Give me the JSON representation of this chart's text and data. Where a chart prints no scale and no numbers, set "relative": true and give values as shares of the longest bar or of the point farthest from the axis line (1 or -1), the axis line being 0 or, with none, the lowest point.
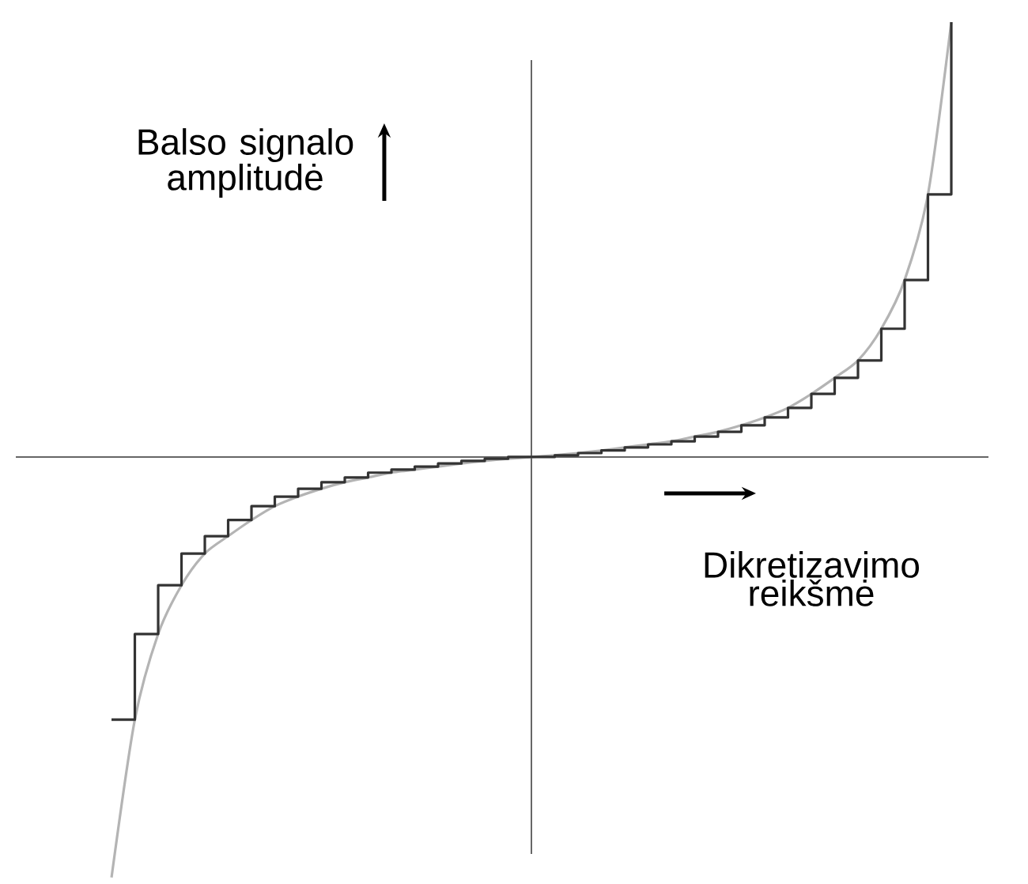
{
  "chart_data": {
    "type": "line",
    "xlabel": "Dikretizavimo reikšmė",
    "ylabel": "Balso signalo amplitudė",
    "relative": true,
    "categories": [
      null,
      null,
      null,
      null,
      null,
      null,
      null,
      null,
      null,
      null,
      null,
      null,
      null,
      null,
      null,
      null,
      null,
      null,
      null,
      null,
      null,
      null,
      null,
      null,
      null,
      null,
      null,
      null,
      null,
      null,
      null,
      null,
      null,
      null,
      null,
      null,
      null
    ],
    "series": [
      {
        "type": "line",
        "color": "#b4b4b4",
        "values": [
          -0.967,
          -0.604,
          -0.407,
          -0.295,
          -0.222,
          -0.182,
          -0.145,
          -0.113,
          -0.091,
          -0.073,
          -0.058,
          -0.047,
          -0.036,
          -0.029,
          -0.022,
          -0.015,
          -0.009,
          -0.004,
          0,
          0.004,
          0.009,
          0.015,
          0.022,
          0.029,
          0.036,
          0.047,
          0.058,
          0.073,
          0.091,
          0.113,
          0.145,
          0.182,
          0.222,
          0.295,
          0.407,
          0.604,
          1
        ]
      },
      {
        "type": "step",
        "color": "#333333",
        "values": [
          -0.604,
          -0.407,
          -0.295,
          -0.222,
          -0.182,
          -0.145,
          -0.113,
          -0.091,
          -0.073,
          -0.058,
          -0.047,
          -0.036,
          -0.029,
          -0.022,
          -0.015,
          -0.009,
          -0.004,
          0,
          0,
          0.004,
          0.009,
          0.015,
          0.022,
          0.029,
          0.036,
          0.047,
          0.058,
          0.073,
          0.091,
          0.113,
          0.145,
          0.182,
          0.222,
          0.295,
          0.407,
          0.604,
          1
        ]
      }
    ]
  }
}
